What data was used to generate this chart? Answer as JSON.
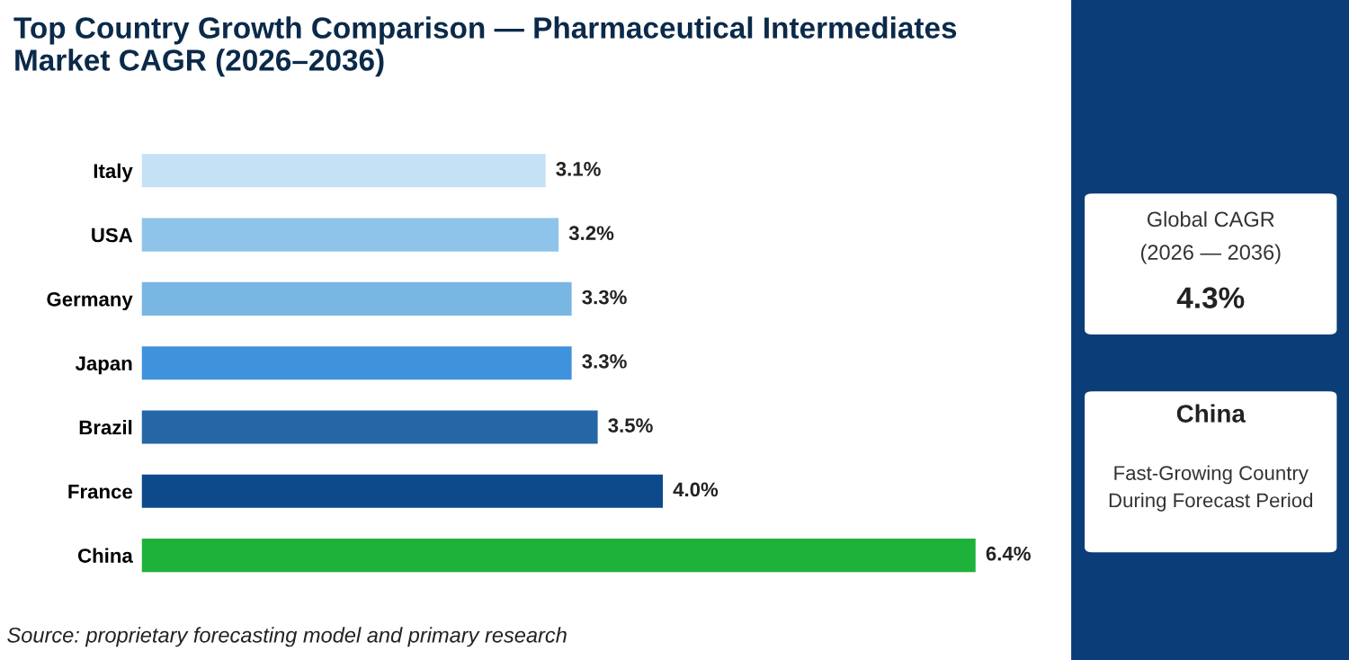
{
  "chart_data": {
    "type": "bar",
    "orientation": "horizontal",
    "title": "Top Country Growth Comparison — Pharmaceutical Intermediates Market CAGR (2026–2036)",
    "categories": [
      "Italy",
      "USA",
      "Germany",
      "Japan",
      "Brazil",
      "France",
      "China"
    ],
    "values": [
      3.1,
      3.2,
      3.3,
      3.3,
      3.5,
      4.0,
      6.4
    ],
    "colors": [
      "#c5e1f5",
      "#8ec4ea",
      "#78b6e4",
      "#3f93dc",
      "#2566a6",
      "#0c4a8c",
      "#1fb23b"
    ],
    "value_labels": [
      "3.1%",
      "3.2%",
      "3.3%",
      "3.3%",
      "3.5%",
      "4.0%",
      "6.4%"
    ],
    "grid": false,
    "legend": false,
    "tick_labels": "y",
    "annotations": [
      "Global CAGR",
      "(2026 — 2036)",
      "4.3%",
      "China",
      "Fast-Growing Country\nDuring Forecast Period",
      "Source: proprietary forecasting model and primary research"
    ]
  }
}
